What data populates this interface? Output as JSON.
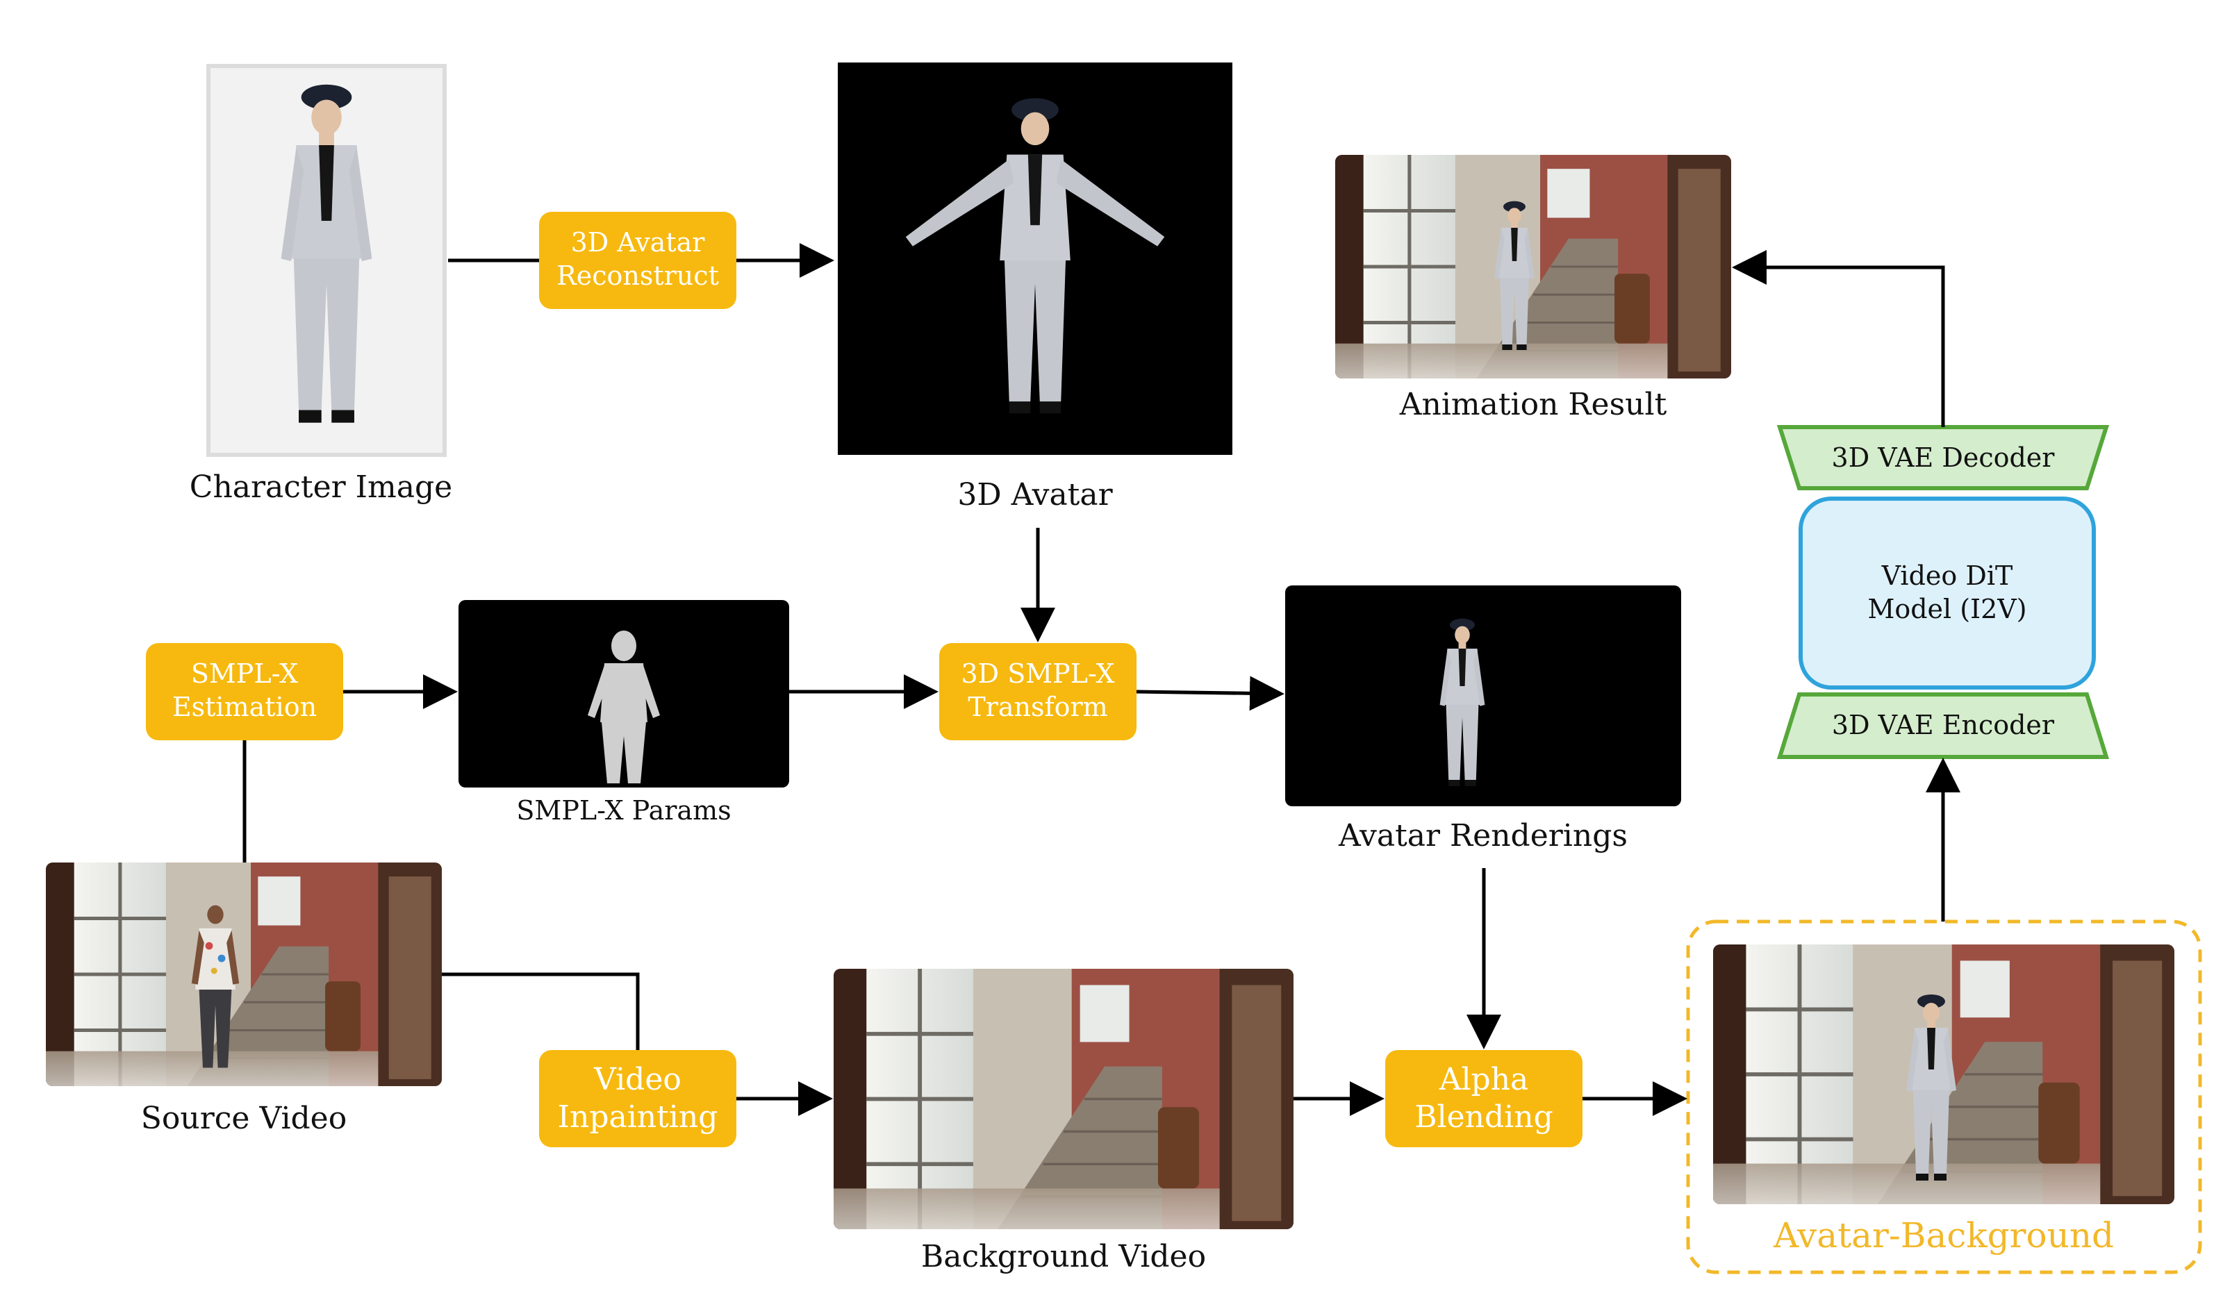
{
  "colors": {
    "process_box": "#F7B90F",
    "process_text": "#FFFFFF",
    "vae_fill": "#D4EDCC",
    "vae_stroke": "#56A83A",
    "dit_fill": "#DDF1FB",
    "dit_stroke": "#2FA3DC",
    "highlight_border": "#F2B829",
    "highlight_text": "#F2B829",
    "arrow": "#000000"
  },
  "labels": {
    "character_image": "Character Image",
    "avatar_3d": "3D Avatar",
    "animation_result": "Animation Result",
    "smplx_params": "SMPL-X Params",
    "avatar_renderings": "Avatar Renderings",
    "source_video": "Source Video",
    "background_video": "Background Video",
    "avatar_background": "Avatar-Background"
  },
  "boxes": {
    "avatar_reconstruct": [
      "3D Avatar",
      "Reconstruct"
    ],
    "smplx_estimation": [
      "SMPL-X",
      "Estimation"
    ],
    "smplx_transform": [
      "3D SMPL-X",
      "Transform"
    ],
    "video_inpainting": [
      "Video",
      "Inpainting"
    ],
    "alpha_blending": [
      "Alpha",
      "Blending"
    ]
  },
  "model": {
    "vae_decoder": "3D VAE Decoder",
    "dit": [
      "Video DiT",
      "Model (I2V)"
    ],
    "vae_encoder": "3D VAE Encoder"
  }
}
